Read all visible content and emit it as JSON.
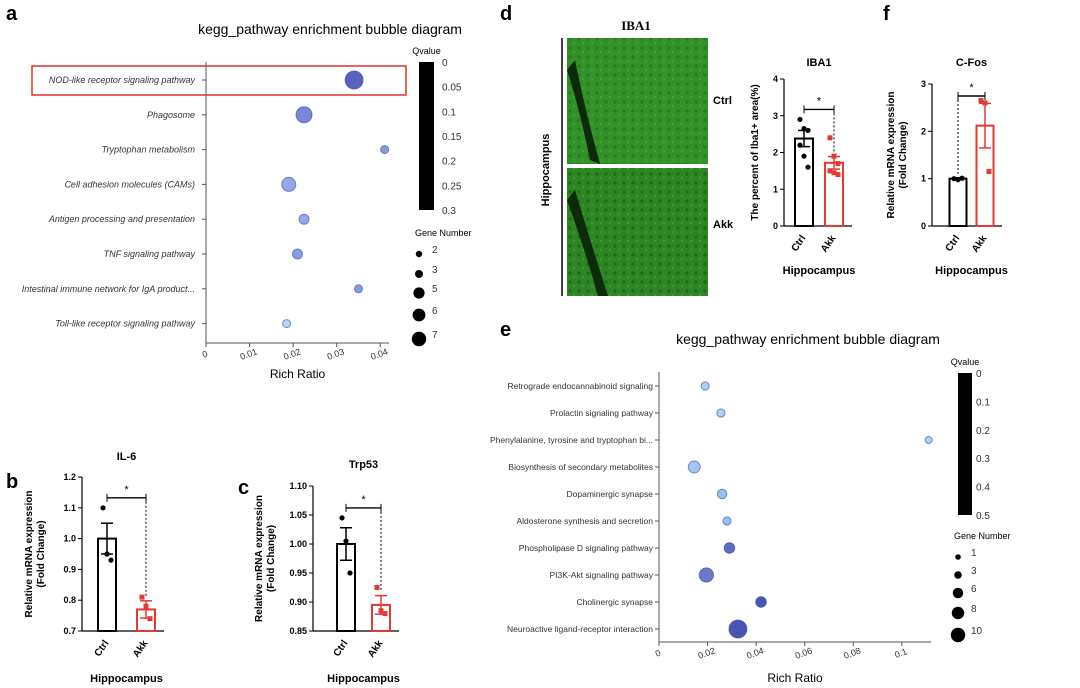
{
  "panel_labels": {
    "a": "a",
    "b": "b",
    "c": "c",
    "d": "d",
    "e": "e",
    "f": "f"
  },
  "microscopy": {
    "title": "IBA1",
    "side_label": "Hippocampus",
    "rows": [
      "Ctrl",
      "Akk"
    ],
    "stain_color": "#3a9a2e"
  },
  "chart_data": [
    {
      "id": "a",
      "type": "scatter",
      "subtype": "bubble",
      "title": "kegg_pathway enrichment bubble diagram",
      "xlabel": "Rich Ratio",
      "xlim": [
        0,
        0.042
      ],
      "xticks": [
        "0",
        "0.01",
        "0.02",
        "0.03",
        "0.04"
      ],
      "xtick_values": [
        0,
        0.01,
        0.02,
        0.03,
        0.04
      ],
      "categories": [
        "NOD-like receptor signaling pathway",
        "Phagosome",
        "Tryptophan metabolism",
        "Cell adhesion molecules (CAMs)",
        "Antigen processing and presentation",
        "TNF signaling pathway",
        "Intestinal immune network for IgA product...",
        "Toll-like receptor signaling pathway"
      ],
      "rich_ratio": [
        0.034,
        0.0225,
        0.041,
        0.019,
        0.0225,
        0.021,
        0.035,
        0.0185
      ],
      "gene_number": [
        7,
        6,
        2,
        5,
        3,
        3,
        2,
        2
      ],
      "colors": [
        "#5a62bf",
        "#7a86d6",
        "#8a9ae0",
        "#96a8ea",
        "#96a8ea",
        "#8c9ce4",
        "#8a9ae0",
        "#b4d8f4"
      ],
      "highlighted": "NOD-like receptor signaling pathway",
      "highlight_color": "#e03030",
      "colorbar": {
        "title": "Qvalue",
        "ticks": [
          "0",
          "0.05",
          "0.1",
          "0.15",
          "0.2",
          "0.25",
          "0.3"
        ]
      },
      "size_legend": {
        "title": "Gene Number",
        "values": [
          "2",
          "3",
          "5",
          "6",
          "7"
        ]
      }
    },
    {
      "id": "e",
      "type": "scatter",
      "subtype": "bubble",
      "title": "kegg_pathway enrichment bubble diagram",
      "xlabel": "Rich Ratio",
      "xlim": [
        0,
        0.112
      ],
      "xticks": [
        "0",
        "0.02",
        "0.04",
        "0.06",
        "0.08",
        "0.1"
      ],
      "xtick_values": [
        0,
        0.02,
        0.04,
        0.06,
        0.08,
        0.1
      ],
      "categories": [
        "Retrograde endocannabinoid signaling",
        "Prolactin signaling pathway",
        "Phenylalanine, tyrosine and tryptophan bi...",
        "Biosynthesis of secondary metabolites",
        "Dopaminergic synapse",
        "Aldosterone synthesis and secretion",
        "Phospholipase D signaling pathway",
        "PI3K-Akt signaling pathway",
        "Cholinergic synapse",
        "Neuroactive ligand-receptor interaction"
      ],
      "rich_ratio": [
        0.019,
        0.0255,
        0.111,
        0.0145,
        0.026,
        0.028,
        0.029,
        0.0195,
        0.042,
        0.0325
      ],
      "gene_number": [
        2,
        2,
        1,
        5,
        3,
        2,
        4,
        7,
        4,
        10
      ],
      "colors": [
        "#a8d4f6",
        "#a8d4f6",
        "#a8d4f6",
        "#a0c8f2",
        "#98c0ee",
        "#98c0ee",
        "#5e6cc4",
        "#6a78cc",
        "#4a56b4",
        "#4a54b2"
      ],
      "colorbar": {
        "title": "Qvalue",
        "ticks": [
          "0",
          "0.1",
          "0.2",
          "0.3",
          "0.4",
          "0.5"
        ]
      },
      "size_legend": {
        "title": "Gene Number",
        "values": [
          "1",
          "3",
          "6",
          "8",
          "10"
        ]
      }
    },
    {
      "id": "b",
      "type": "bar",
      "title": "IL-6",
      "ylabel": [
        "Relative mRNA expression",
        "(Fold Change)"
      ],
      "xlabel": "Hippocampus",
      "ylim": [
        0.7,
        1.2
      ],
      "yticks": [
        "0.7",
        "0.8",
        "0.9",
        "1.0",
        "1.1",
        "1.2"
      ],
      "ytick_values": [
        0.7,
        0.8,
        0.9,
        1.0,
        1.1,
        1.2
      ],
      "categories": [
        "Ctrl",
        "Akk"
      ],
      "values": [
        1.0,
        0.77
      ],
      "sem": [
        0.05,
        0.028
      ],
      "points": [
        [
          1.1,
          0.95,
          0.93
        ],
        [
          0.81,
          0.78,
          0.74
        ]
      ],
      "colors": [
        "#000000",
        "#e53935"
      ],
      "significance": "*"
    },
    {
      "id": "c",
      "type": "bar",
      "title": "Trp53",
      "ylabel": [
        "Relative mRNA expression",
        "(Fold Change)"
      ],
      "xlabel": "Hippocampus",
      "ylim": [
        0.85,
        1.1
      ],
      "yticks": [
        "0.85",
        "0.90",
        "0.95",
        "1.00",
        "1.05",
        "1.10"
      ],
      "ytick_values": [
        0.85,
        0.9,
        0.95,
        1.0,
        1.05,
        1.1
      ],
      "categories": [
        "Ctrl",
        "Akk"
      ],
      "values": [
        1.0,
        0.895
      ],
      "sem": [
        0.028,
        0.016
      ],
      "points": [
        [
          1.045,
          1.005,
          0.95
        ],
        [
          0.925,
          0.885,
          0.88
        ]
      ],
      "colors": [
        "#000000",
        "#e53935"
      ],
      "significance": "*"
    },
    {
      "id": "d",
      "type": "bar",
      "title": "IBA1",
      "ylabel": [
        "The percent of Iba1+ area(%)"
      ],
      "xlabel": "Hippocampus",
      "ylim": [
        0,
        4
      ],
      "yticks": [
        "0",
        "1",
        "2",
        "3",
        "4"
      ],
      "ytick_values": [
        0,
        1,
        2,
        3,
        4
      ],
      "categories": [
        "Ctrl",
        "Akk"
      ],
      "values": [
        2.38,
        1.72
      ],
      "sem": [
        0.22,
        0.17
      ],
      "points": [
        [
          2.9,
          2.65,
          2.6,
          2.2,
          1.9,
          1.6
        ],
        [
          2.4,
          1.9,
          1.7,
          1.5,
          1.45,
          1.4
        ]
      ],
      "colors": [
        "#000000",
        "#e53935"
      ],
      "significance": "*"
    },
    {
      "id": "f",
      "type": "bar",
      "title": "C-Fos",
      "ylabel": [
        "Relative mRNA expression",
        "(Fold Change)"
      ],
      "xlabel": "Hippocampus",
      "ylim": [
        0,
        3
      ],
      "yticks": [
        "0",
        "1",
        "2",
        "3"
      ],
      "ytick_values": [
        0,
        1,
        2,
        3
      ],
      "categories": [
        "Ctrl",
        "Akk"
      ],
      "values": [
        1.0,
        2.12
      ],
      "sem": [
        0.02,
        0.47
      ],
      "points": [
        [
          1.0,
          0.98,
          1.01
        ],
        [
          2.65,
          2.6,
          1.15
        ]
      ],
      "colors": [
        "#000000",
        "#e53935"
      ],
      "significance": "*"
    }
  ]
}
